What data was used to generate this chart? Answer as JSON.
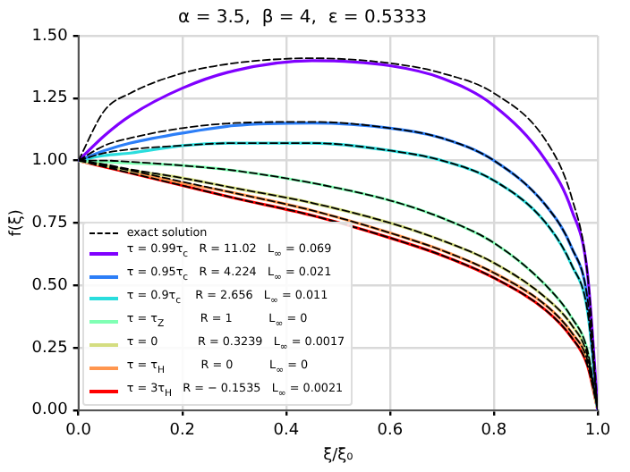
{
  "chart_data": {
    "type": "line",
    "title": "α = 3.5,  β = 4,  ε = 0.5333",
    "xlabel": "ξ/ξ₀",
    "ylabel": "f(ξ)",
    "x": [
      0,
      0.05,
      0.1,
      0.2,
      0.3,
      0.45,
      0.6,
      0.7,
      0.8,
      0.9,
      0.95,
      0.98,
      1
    ],
    "xlim": [
      0,
      1
    ],
    "xticks": [
      {
        "value": 0,
        "label": "0.0"
      },
      {
        "value": 0.2,
        "label": "0.2"
      },
      {
        "value": 0.4,
        "label": "0.4"
      },
      {
        "value": 0.6,
        "label": "0.6"
      },
      {
        "value": 0.8,
        "label": "0.8"
      },
      {
        "value": 1,
        "label": "1.0"
      }
    ],
    "ylim": [
      0,
      1.5
    ],
    "yticks": [
      {
        "value": 0,
        "label": "0.00"
      },
      {
        "value": 0.25,
        "label": "0.25"
      },
      {
        "value": 0.5,
        "label": "0.50"
      },
      {
        "value": 0.75,
        "label": "0.75"
      },
      {
        "value": 1,
        "label": "1.00"
      },
      {
        "value": 1.25,
        "label": "1.25"
      },
      {
        "value": 1.5,
        "label": "1.50"
      }
    ],
    "grid": true,
    "legend": "bottom left",
    "marker": "none",
    "series": [
      {
        "name": "exact solution",
        "color": "#000000",
        "line_style": "dashed",
        "x": [
          0,
          0.05,
          0.1,
          0.2,
          0.3,
          0.45,
          0.6,
          0.7,
          0.8,
          0.9,
          0.95,
          0.98,
          1,
          null,
          0,
          0.05,
          0.1,
          0.2,
          0.3,
          0.45,
          0.6,
          0.7,
          0.8,
          0.9,
          0.95,
          0.98,
          1,
          null,
          0,
          0.05,
          0.1,
          0.2,
          0.3,
          0.45,
          0.6,
          0.7,
          0.8,
          0.9,
          0.95,
          0.98,
          1,
          null,
          0,
          0.05,
          0.1,
          0.2,
          0.3,
          0.45,
          0.6,
          0.7,
          0.8,
          0.9,
          0.95,
          0.98,
          1,
          null,
          0,
          0.05,
          0.1,
          0.2,
          0.3,
          0.45,
          0.6,
          0.7,
          0.8,
          0.9,
          0.95,
          0.98,
          1,
          null,
          0,
          0.05,
          0.1,
          0.2,
          0.3,
          0.45,
          0.6,
          0.7,
          0.8,
          0.9,
          0.95,
          0.98,
          1,
          null,
          0,
          0.05,
          0.1,
          0.2,
          0.3,
          0.45,
          0.6,
          0.7,
          0.8,
          0.9,
          0.95,
          0.98,
          1
        ],
        "values": [
          1,
          1.2,
          1.27,
          1.35,
          1.39,
          1.41,
          1.39,
          1.35,
          1.27,
          1.08,
          0.85,
          0.55,
          0,
          null,
          1,
          1.06,
          1.09,
          1.13,
          1.15,
          1.155,
          1.13,
          1.09,
          1.0,
          0.82,
          0.65,
          0.45,
          0,
          null,
          1,
          1.03,
          1.045,
          1.06,
          1.07,
          1.07,
          1.04,
          1.0,
          0.92,
          0.75,
          0.58,
          0.4,
          0,
          null,
          1,
          1.0,
          0.995,
          0.98,
          0.96,
          0.91,
          0.84,
          0.77,
          0.67,
          0.5,
          0.37,
          0.24,
          0,
          null,
          1,
          0.985,
          0.965,
          0.93,
          0.89,
          0.83,
          0.75,
          0.68,
          0.59,
          0.45,
          0.34,
          0.22,
          0,
          null,
          1,
          0.98,
          0.96,
          0.915,
          0.87,
          0.8,
          0.71,
          0.64,
          0.55,
          0.42,
          0.31,
          0.2,
          0,
          null,
          1,
          0.975,
          0.95,
          0.9,
          0.85,
          0.78,
          0.69,
          0.62,
          0.53,
          0.4,
          0.29,
          0.18,
          0
        ]
      },
      {
        "name": "τ = 0.99τ$_{c}$   R = 11.02   L$_{∞}$ = 0.069",
        "color": "#8000ff",
        "values": [
          1,
          1.1,
          1.18,
          1.29,
          1.36,
          1.4,
          1.38,
          1.33,
          1.22,
          1.0,
          0.8,
          0.55,
          0
        ]
      },
      {
        "name": "τ = 0.95τ$_{c}$   R = 4.224   L$_{∞}$ = 0.021",
        "color": "#2c7ef7",
        "values": [
          1,
          1.04,
          1.07,
          1.11,
          1.14,
          1.15,
          1.13,
          1.09,
          1.0,
          0.82,
          0.65,
          0.45,
          0
        ]
      },
      {
        "name": "τ = 0.9τ$_{c}$    R = 2.656   L$_{∞}$ = 0.011",
        "color": "#2adddd",
        "values": [
          1,
          1.02,
          1.03,
          1.06,
          1.07,
          1.07,
          1.04,
          1.0,
          0.92,
          0.75,
          0.58,
          0.4,
          0
        ]
      },
      {
        "name": "τ = τ$_{Z}$          R = 1          L$_{∞}$ = 0",
        "color": "#80ffb4",
        "values": [
          1,
          0.995,
          0.99,
          0.98,
          0.96,
          0.91,
          0.84,
          0.77,
          0.67,
          0.5,
          0.37,
          0.24,
          0
        ]
      },
      {
        "name": "τ = 0           R = 0.3239   L$_{∞}$ = 0.0017",
        "color": "#d4dd80",
        "values": [
          1,
          0.98,
          0.96,
          0.93,
          0.89,
          0.83,
          0.75,
          0.68,
          0.59,
          0.45,
          0.34,
          0.22,
          0
        ]
      },
      {
        "name": "τ = τ$_{H}$          R = 0          L$_{∞}$ = 0",
        "color": "#ff964f",
        "values": [
          1,
          0.98,
          0.955,
          0.91,
          0.87,
          0.8,
          0.71,
          0.64,
          0.55,
          0.42,
          0.31,
          0.2,
          0
        ]
      },
      {
        "name": "τ = 3τ$_{H}$   R = − 0.1535   L$_{∞}$ = 0.0021",
        "color": "#ff0000",
        "values": [
          1,
          0.975,
          0.95,
          0.9,
          0.85,
          0.78,
          0.69,
          0.62,
          0.53,
          0.4,
          0.29,
          0.18,
          0
        ]
      }
    ]
  }
}
